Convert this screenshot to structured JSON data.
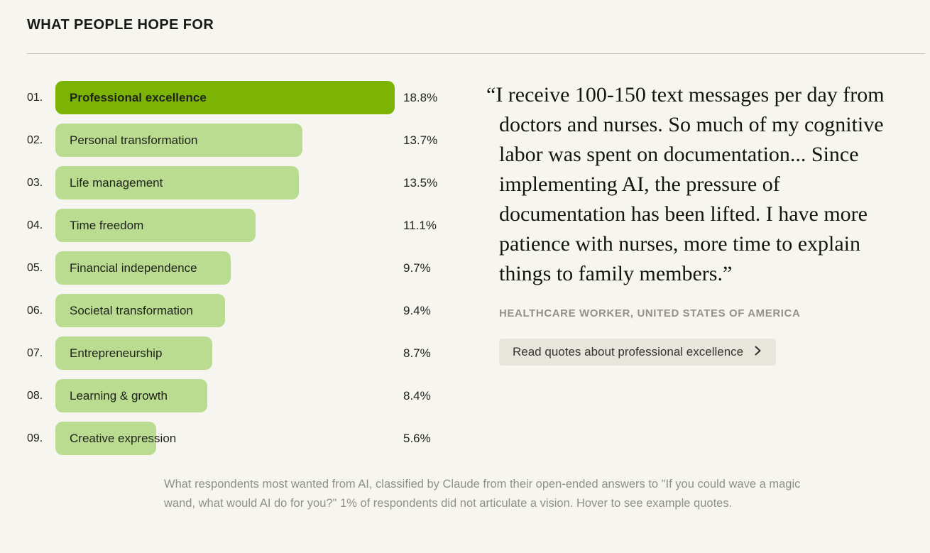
{
  "header": {
    "title": "WHAT PEOPLE HOPE FOR"
  },
  "chart_data": {
    "type": "bar",
    "orientation": "horizontal",
    "title": "WHAT PEOPLE HOPE FOR",
    "categories": [
      "Professional excellence",
      "Personal transformation",
      "Life management",
      "Time freedom",
      "Financial independence",
      "Societal transformation",
      "Entrepreneurship",
      "Learning & growth",
      "Creative expression"
    ],
    "values": [
      18.8,
      13.7,
      13.5,
      11.1,
      9.7,
      9.4,
      8.7,
      8.4,
      5.6
    ],
    "value_labels": [
      "18.8%",
      "13.7%",
      "13.5%",
      "11.1%",
      "9.7%",
      "9.4%",
      "8.7%",
      "8.4%",
      "5.6%"
    ],
    "rank_labels": [
      "01.",
      "02.",
      "03.",
      "04.",
      "05.",
      "06.",
      "07.",
      "08.",
      "09."
    ],
    "highlight_index": 0,
    "xlim": [
      0,
      18.8
    ],
    "grid": false,
    "legend": "none",
    "colors": {
      "highlight_bar": "#7CB405",
      "bar": "#B9DC91",
      "background": "#F7F5EF"
    }
  },
  "quote_panel": {
    "quote": "“I receive 100-150 text messages per day from doctors and nurses. So much of my cognitive labor was spent on documentation... Since implementing AI, the pressure of documentation has been lifted. I have more patience with nurses, more time to explain things to family members.”",
    "attribution": "HEALTHCARE WORKER, UNITED STATES OF AMERICA",
    "button_label": "Read quotes about professional excellence",
    "button_icon": "chevron-right"
  },
  "caption": "What respondents most wanted from AI, classified by Claude from their open-ended answers to \"If you could wave a magic wand, what would AI do for you?\" 1% of respondents did not articulate a vision. Hover to see example quotes."
}
